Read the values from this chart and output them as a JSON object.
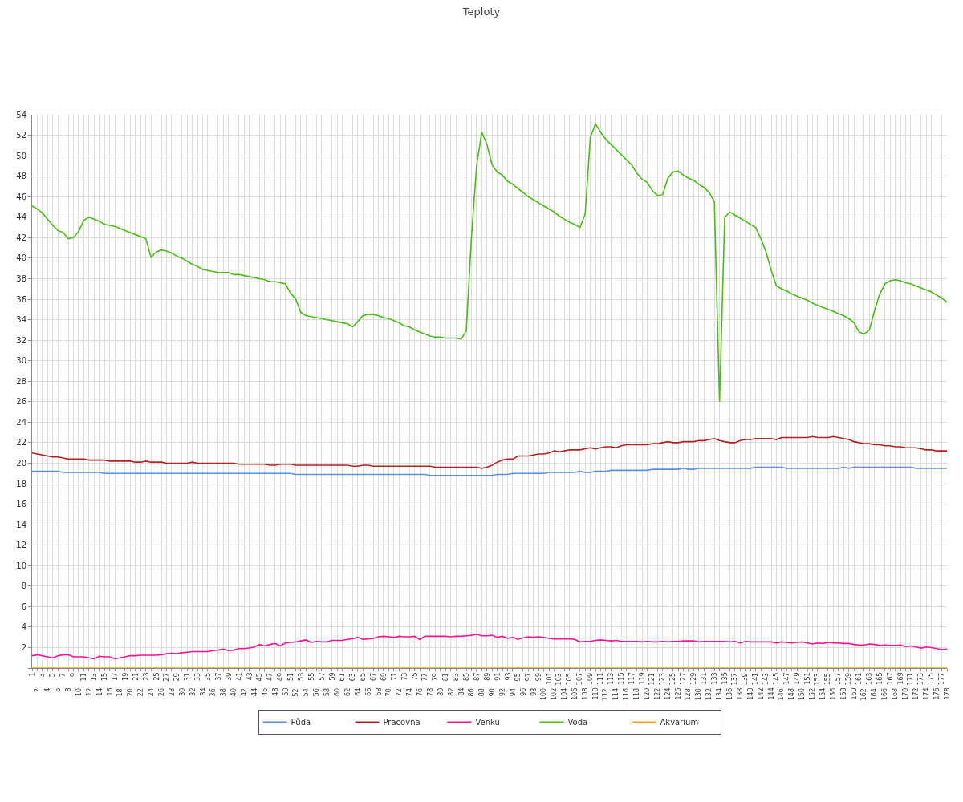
{
  "chart_data": {
    "type": "line",
    "title": "Teploty",
    "categories": [
      "1",
      "2",
      "3",
      "4",
      "5",
      "6",
      "7",
      "8",
      "9",
      "10",
      "11",
      "12",
      "13",
      "14",
      "15",
      "16",
      "17",
      "18",
      "19",
      "20",
      "21",
      "22",
      "23",
      "24",
      "25",
      "26",
      "27",
      "28",
      "29",
      "30",
      "31",
      "32",
      "33",
      "34",
      "35",
      "36",
      "37",
      "38",
      "39",
      "40",
      "41",
      "42",
      "43",
      "44",
      "45",
      "46",
      "47",
      "48",
      "49",
      "50",
      "51",
      "52",
      "53",
      "54",
      "55",
      "56",
      "57",
      "58",
      "59",
      "60",
      "61",
      "62",
      "63",
      "64",
      "65",
      "66",
      "67",
      "68",
      "69",
      "70",
      "71",
      "72",
      "73",
      "74",
      "75",
      "76",
      "77",
      "78",
      "79",
      "80",
      "81",
      "82",
      "83",
      "84",
      "85",
      "86",
      "87",
      "88",
      "89",
      "90",
      "91",
      "92",
      "93",
      "94",
      "95",
      "96",
      "97",
      "98",
      "99",
      "100",
      "101",
      "102",
      "103",
      "104",
      "105",
      "106",
      "107",
      "108",
      "109",
      "110",
      "111",
      "112",
      "113",
      "114",
      "115",
      "116",
      "117",
      "118",
      "119",
      "120",
      "121",
      "122",
      "123",
      "124",
      "125",
      "126",
      "127",
      "128",
      "129",
      "130",
      "131",
      "132",
      "133",
      "134",
      "135",
      "136",
      "137",
      "138",
      "139",
      "140",
      "141",
      "142",
      "143",
      "144",
      "145",
      "146",
      "147",
      "148",
      "149",
      "150",
      "151",
      "152",
      "153",
      "154",
      "155",
      "156",
      "157",
      "158",
      "159",
      "160",
      "161",
      "162",
      "163",
      "164",
      "165",
      "166",
      "167",
      "168",
      "169",
      "170",
      "171",
      "172",
      "173",
      "174",
      "175",
      "176",
      "177",
      "178"
    ],
    "series": [
      {
        "name": "Půda",
        "color": "#5c8fe6",
        "values": [
          19.2,
          19.2,
          19.2,
          19.2,
          19.2,
          19.2,
          19.1,
          19.1,
          19.1,
          19.1,
          19.1,
          19.1,
          19.1,
          19.1,
          19.0,
          19.0,
          19.0,
          19.0,
          19.0,
          19.0,
          19.0,
          19.0,
          19.0,
          19.0,
          19.0,
          19.0,
          19.0,
          19.0,
          19.0,
          19.0,
          19.0,
          19.0,
          19.0,
          19.0,
          19.0,
          19.0,
          19.0,
          19.0,
          19.0,
          19.0,
          19.0,
          19.0,
          19.0,
          19.0,
          19.0,
          19.0,
          19.0,
          19.0,
          19.0,
          19.0,
          19.0,
          18.9,
          18.9,
          18.9,
          18.9,
          18.9,
          18.9,
          18.9,
          18.9,
          18.9,
          18.9,
          18.9,
          18.9,
          18.9,
          18.9,
          18.9,
          18.9,
          18.9,
          18.9,
          18.9,
          18.9,
          18.9,
          18.9,
          18.9,
          18.9,
          18.9,
          18.9,
          18.8,
          18.8,
          18.8,
          18.8,
          18.8,
          18.8,
          18.8,
          18.8,
          18.8,
          18.8,
          18.8,
          18.8,
          18.8,
          18.9,
          18.9,
          18.9,
          19.0,
          19.0,
          19.0,
          19.0,
          19.0,
          19.0,
          19.0,
          19.1,
          19.1,
          19.1,
          19.1,
          19.1,
          19.1,
          19.2,
          19.1,
          19.1,
          19.2,
          19.2,
          19.2,
          19.3,
          19.3,
          19.3,
          19.3,
          19.3,
          19.3,
          19.3,
          19.3,
          19.4,
          19.4,
          19.4,
          19.4,
          19.4,
          19.4,
          19.5,
          19.4,
          19.4,
          19.5,
          19.5,
          19.5,
          19.5,
          19.5,
          19.5,
          19.5,
          19.5,
          19.5,
          19.5,
          19.5,
          19.6,
          19.6,
          19.6,
          19.6,
          19.6,
          19.6,
          19.5,
          19.5,
          19.5,
          19.5,
          19.5,
          19.5,
          19.5,
          19.5,
          19.5,
          19.5,
          19.5,
          19.6,
          19.5,
          19.6,
          19.6,
          19.6,
          19.6,
          19.6,
          19.6,
          19.6,
          19.6,
          19.6,
          19.6,
          19.6,
          19.6,
          19.5,
          19.5,
          19.5,
          19.5,
          19.5,
          19.5,
          19.5
        ]
      },
      {
        "name": "Pracovna",
        "color": "#b22222",
        "values": [
          21.0,
          20.9,
          20.8,
          20.7,
          20.6,
          20.6,
          20.5,
          20.4,
          20.4,
          20.4,
          20.4,
          20.3,
          20.3,
          20.3,
          20.3,
          20.2,
          20.2,
          20.2,
          20.2,
          20.2,
          20.1,
          20.1,
          20.2,
          20.1,
          20.1,
          20.1,
          20.0,
          20.0,
          20.0,
          20.0,
          20.0,
          20.1,
          20.0,
          20.0,
          20.0,
          20.0,
          20.0,
          20.0,
          20.0,
          20.0,
          19.9,
          19.9,
          19.9,
          19.9,
          19.9,
          19.9,
          19.8,
          19.8,
          19.9,
          19.9,
          19.9,
          19.8,
          19.8,
          19.8,
          19.8,
          19.8,
          19.8,
          19.8,
          19.8,
          19.8,
          19.8,
          19.8,
          19.7,
          19.7,
          19.8,
          19.8,
          19.7,
          19.7,
          19.7,
          19.7,
          19.7,
          19.7,
          19.7,
          19.7,
          19.7,
          19.7,
          19.7,
          19.7,
          19.6,
          19.6,
          19.6,
          19.6,
          19.6,
          19.6,
          19.6,
          19.6,
          19.6,
          19.5,
          19.6,
          19.8,
          20.1,
          20.3,
          20.4,
          20.4,
          20.7,
          20.7,
          20.7,
          20.8,
          20.9,
          20.9,
          21.0,
          21.2,
          21.1,
          21.2,
          21.3,
          21.3,
          21.3,
          21.4,
          21.5,
          21.4,
          21.5,
          21.6,
          21.6,
          21.5,
          21.7,
          21.8,
          21.8,
          21.8,
          21.8,
          21.8,
          21.9,
          21.9,
          22.0,
          22.1,
          22.0,
          22.0,
          22.1,
          22.1,
          22.1,
          22.2,
          22.2,
          22.3,
          22.4,
          22.2,
          22.1,
          22.0,
          22.0,
          22.2,
          22.3,
          22.3,
          22.4,
          22.4,
          22.4,
          22.4,
          22.3,
          22.5,
          22.5,
          22.5,
          22.5,
          22.5,
          22.5,
          22.6,
          22.5,
          22.5,
          22.5,
          22.6,
          22.5,
          22.4,
          22.3,
          22.1,
          22.0,
          21.9,
          21.9,
          21.8,
          21.8,
          21.7,
          21.7,
          21.6,
          21.6,
          21.5,
          21.5,
          21.5,
          21.4,
          21.3,
          21.3,
          21.2,
          21.2,
          21.2
        ]
      },
      {
        "name": "Venku",
        "color": "#ff1493",
        "values": [
          1.2,
          1.3,
          1.2,
          1.1,
          1.0,
          1.2,
          1.3,
          1.3,
          1.1,
          1.1,
          1.1,
          1.0,
          0.9,
          1.15,
          1.1,
          1.1,
          0.9,
          1.0,
          1.1,
          1.2,
          1.2,
          1.25,
          1.25,
          1.25,
          1.25,
          1.3,
          1.4,
          1.45,
          1.4,
          1.5,
          1.55,
          1.6,
          1.6,
          1.6,
          1.6,
          1.7,
          1.75,
          1.85,
          1.7,
          1.75,
          1.9,
          1.9,
          1.95,
          2.05,
          2.3,
          2.15,
          2.3,
          2.4,
          2.15,
          2.45,
          2.5,
          2.55,
          2.65,
          2.75,
          2.5,
          2.6,
          2.55,
          2.55,
          2.7,
          2.7,
          2.7,
          2.8,
          2.85,
          3.0,
          2.8,
          2.85,
          2.9,
          3.05,
          3.1,
          3.05,
          3.0,
          3.1,
          3.05,
          3.05,
          3.1,
          2.8,
          3.1,
          3.1,
          3.1,
          3.1,
          3.1,
          3.05,
          3.1,
          3.1,
          3.15,
          3.2,
          3.3,
          3.15,
          3.15,
          3.2,
          3.0,
          3.1,
          2.9,
          3.0,
          2.8,
          2.95,
          3.05,
          3.0,
          3.05,
          3.0,
          2.9,
          2.85,
          2.85,
          2.85,
          2.85,
          2.8,
          2.55,
          2.6,
          2.6,
          2.7,
          2.75,
          2.7,
          2.65,
          2.7,
          2.6,
          2.6,
          2.6,
          2.6,
          2.55,
          2.6,
          2.55,
          2.55,
          2.6,
          2.55,
          2.6,
          2.6,
          2.65,
          2.65,
          2.65,
          2.55,
          2.6,
          2.6,
          2.6,
          2.6,
          2.6,
          2.55,
          2.6,
          2.45,
          2.6,
          2.55,
          2.55,
          2.55,
          2.55,
          2.55,
          2.45,
          2.55,
          2.5,
          2.45,
          2.5,
          2.55,
          2.45,
          2.35,
          2.45,
          2.4,
          2.5,
          2.45,
          2.45,
          2.4,
          2.4,
          2.3,
          2.25,
          2.25,
          2.35,
          2.3,
          2.2,
          2.25,
          2.2,
          2.2,
          2.25,
          2.1,
          2.15,
          2.05,
          1.95,
          2.05,
          2.0,
          1.9,
          1.8,
          1.85
        ]
      },
      {
        "name": "Voda",
        "color": "#4cbb17",
        "values": [
          45.1,
          44.8,
          44.4,
          43.8,
          43.2,
          42.7,
          42.5,
          41.9,
          42.0,
          42.6,
          43.7,
          44.0,
          43.8,
          43.6,
          43.3,
          43.2,
          43.1,
          42.9,
          42.7,
          42.5,
          42.3,
          42.1,
          41.9,
          40.1,
          40.6,
          40.8,
          40.7,
          40.5,
          40.2,
          40.0,
          39.7,
          39.4,
          39.2,
          38.9,
          38.8,
          38.7,
          38.6,
          38.6,
          38.6,
          38.4,
          38.4,
          38.3,
          38.2,
          38.1,
          38.0,
          37.9,
          37.7,
          37.7,
          37.6,
          37.5,
          36.6,
          36.0,
          34.7,
          34.4,
          34.3,
          34.2,
          34.1,
          34.0,
          33.9,
          33.8,
          33.7,
          33.6,
          33.3,
          33.8,
          34.4,
          34.5,
          34.5,
          34.4,
          34.2,
          34.1,
          33.9,
          33.7,
          33.4,
          33.3,
          33.0,
          32.8,
          32.6,
          32.4,
          32.3,
          32.3,
          32.2,
          32.2,
          32.2,
          32.1,
          32.9,
          42.0,
          49.0,
          52.3,
          51.1,
          49.1,
          48.4,
          48.1,
          47.5,
          47.2,
          46.8,
          46.4,
          46.0,
          45.7,
          45.4,
          45.1,
          44.8,
          44.5,
          44.1,
          43.8,
          43.5,
          43.3,
          43.0,
          44.3,
          51.8,
          53.1,
          52.3,
          51.6,
          51.1,
          50.6,
          50.1,
          49.6,
          49.1,
          48.3,
          47.7,
          47.4,
          46.6,
          46.1,
          46.2,
          47.8,
          48.4,
          48.5,
          48.1,
          47.8,
          47.6,
          47.2,
          46.9,
          46.4,
          45.5,
          26.0,
          44.0,
          44.5,
          44.2,
          43.9,
          43.6,
          43.3,
          43.0,
          41.9,
          40.6,
          38.8,
          37.3,
          37.0,
          36.8,
          36.5,
          36.3,
          36.1,
          35.9,
          35.6,
          35.4,
          35.2,
          35.0,
          34.8,
          34.6,
          34.4,
          34.1,
          33.7,
          32.8,
          32.6,
          33.0,
          34.9,
          36.5,
          37.5,
          37.8,
          37.9,
          37.8,
          37.6,
          37.5,
          37.3,
          37.1,
          36.9,
          36.7,
          36.4,
          36.1,
          35.7
        ]
      },
      {
        "name": "Akvarium",
        "color": "#ffa500",
        "values": [
          0,
          0,
          0,
          0,
          0,
          0,
          0,
          0,
          0,
          0,
          0,
          0,
          0,
          0,
          0,
          0,
          0,
          0,
          0,
          0,
          0,
          0,
          0,
          0,
          0,
          0,
          0,
          0,
          0,
          0,
          0,
          0,
          0,
          0,
          0,
          0,
          0,
          0,
          0,
          0,
          0,
          0,
          0,
          0,
          0,
          0,
          0,
          0,
          0,
          0,
          0,
          0,
          0,
          0,
          0,
          0,
          0,
          0,
          0,
          0,
          0,
          0,
          0,
          0,
          0,
          0,
          0,
          0,
          0,
          0,
          0,
          0,
          0,
          0,
          0,
          0,
          0,
          0,
          0,
          0,
          0,
          0,
          0,
          0,
          0,
          0,
          0,
          0,
          0,
          0,
          0,
          0,
          0,
          0,
          0,
          0,
          0,
          0,
          0,
          0,
          0,
          0,
          0,
          0,
          0,
          0,
          0,
          0,
          0,
          0,
          0,
          0,
          0,
          0,
          0,
          0,
          0,
          0,
          0,
          0,
          0,
          0,
          0,
          0,
          0,
          0,
          0,
          0,
          0,
          0,
          0,
          0,
          0,
          0,
          0,
          0,
          0,
          0,
          0,
          0,
          0,
          0,
          0,
          0,
          0,
          0,
          0,
          0,
          0,
          0,
          0,
          0,
          0,
          0,
          0,
          0,
          0,
          0,
          0,
          0,
          0,
          0,
          0,
          0,
          0,
          0,
          0,
          0,
          0,
          0,
          0,
          0,
          0,
          0,
          0,
          0,
          0,
          0
        ]
      }
    ],
    "ylim": [
      0,
      54
    ],
    "yticks": [
      {
        "value": 0,
        "label": null
      },
      2,
      4,
      6,
      8,
      10,
      12,
      14,
      16,
      18,
      20,
      22,
      24,
      26,
      28,
      30,
      32,
      34,
      36,
      38,
      40,
      42,
      44,
      46,
      48,
      50,
      52,
      54
    ],
    "grid": true,
    "legend": "bottom",
    "marker": "none",
    "line_style": "solid"
  }
}
